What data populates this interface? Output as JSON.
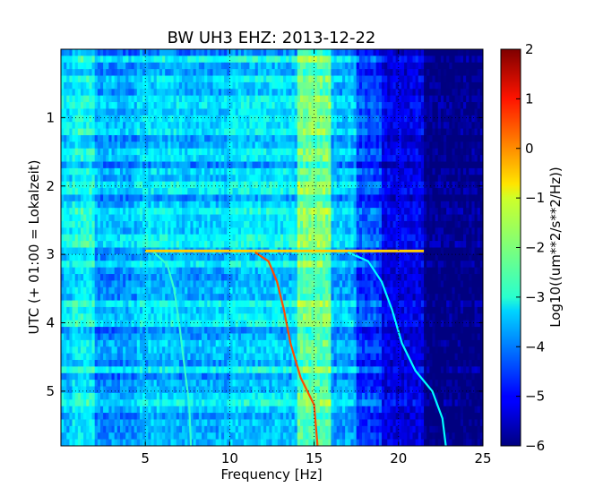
{
  "chart_data": {
    "type": "heatmap",
    "title": "BW UH3 EHZ: 2013-12-22",
    "xlabel": "Frequency [Hz]",
    "ylabel": "UTC (+ 01:00 = Lokalzeit)",
    "xlim": [
      0,
      25
    ],
    "ylim": [
      0,
      5.8
    ],
    "y_inverted": true,
    "x_ticks": [
      5,
      10,
      15,
      20,
      25
    ],
    "y_ticks": [
      1,
      2,
      3,
      4,
      5
    ],
    "x_tick_labels": [
      "5",
      "10",
      "15",
      "20",
      "25"
    ],
    "y_tick_labels": [
      "1",
      "2",
      "3",
      "4",
      "5"
    ],
    "grid": "dotted",
    "colormap": "jet",
    "colorbar": {
      "label": "Log10((um**2/s**2/Hz))",
      "range": [
        -6,
        2
      ],
      "ticks": [
        2,
        1,
        0,
        -1,
        -2,
        -3,
        -4,
        -5,
        -6
      ],
      "tick_labels": [
        "2",
        "1",
        "0",
        "−1",
        "−2",
        "−3",
        "−4",
        "−5",
        "−6"
      ]
    },
    "bands": [
      {
        "f_min": 0,
        "f_max": 0.6,
        "level": -3.3
      },
      {
        "f_min": 0.6,
        "f_max": 2.0,
        "level": -3.0
      },
      {
        "f_min": 2.0,
        "f_max": 4.5,
        "level": -3.7
      },
      {
        "f_min": 4.5,
        "f_max": 7.0,
        "level": -3.4
      },
      {
        "f_min": 7.0,
        "f_max": 10.0,
        "level": -3.5
      },
      {
        "f_min": 10.0,
        "f_max": 14.0,
        "level": -3.3
      },
      {
        "f_min": 14.0,
        "f_max": 16.0,
        "level": -2.2
      },
      {
        "f_min": 16.0,
        "f_max": 17.5,
        "level": -3.6
      },
      {
        "f_min": 17.5,
        "f_max": 19.0,
        "level": -4.5
      },
      {
        "f_min": 19.0,
        "f_max": 21.5,
        "level": -5.2
      },
      {
        "f_min": 21.5,
        "f_max": 25.0,
        "level": -6.0
      }
    ],
    "events": [
      {
        "t": 2.95,
        "f_min": 5.0,
        "f_max": 21.5,
        "level": -0.6
      }
    ],
    "tones": [
      {
        "level": -2.6,
        "points": [
          [
            5.5,
            2.97
          ],
          [
            6.3,
            3.15
          ],
          [
            6.7,
            3.5
          ],
          [
            7.0,
            4.0
          ],
          [
            7.3,
            4.6
          ],
          [
            7.6,
            5.2
          ],
          [
            7.7,
            5.8
          ]
        ]
      },
      {
        "level": 0.4,
        "points": [
          [
            11.5,
            2.97
          ],
          [
            12.3,
            3.1
          ],
          [
            12.8,
            3.4
          ],
          [
            13.2,
            3.8
          ],
          [
            13.6,
            4.3
          ],
          [
            14.2,
            4.8
          ],
          [
            15.0,
            5.2
          ],
          [
            15.2,
            5.8
          ]
        ]
      },
      {
        "level": -3.0,
        "points": [
          [
            17.0,
            2.97
          ],
          [
            18.2,
            3.1
          ],
          [
            19.0,
            3.4
          ],
          [
            19.6,
            3.8
          ],
          [
            20.2,
            4.3
          ],
          [
            21.0,
            4.7
          ],
          [
            22.0,
            5.0
          ],
          [
            22.6,
            5.4
          ],
          [
            22.8,
            5.8
          ]
        ]
      }
    ]
  }
}
